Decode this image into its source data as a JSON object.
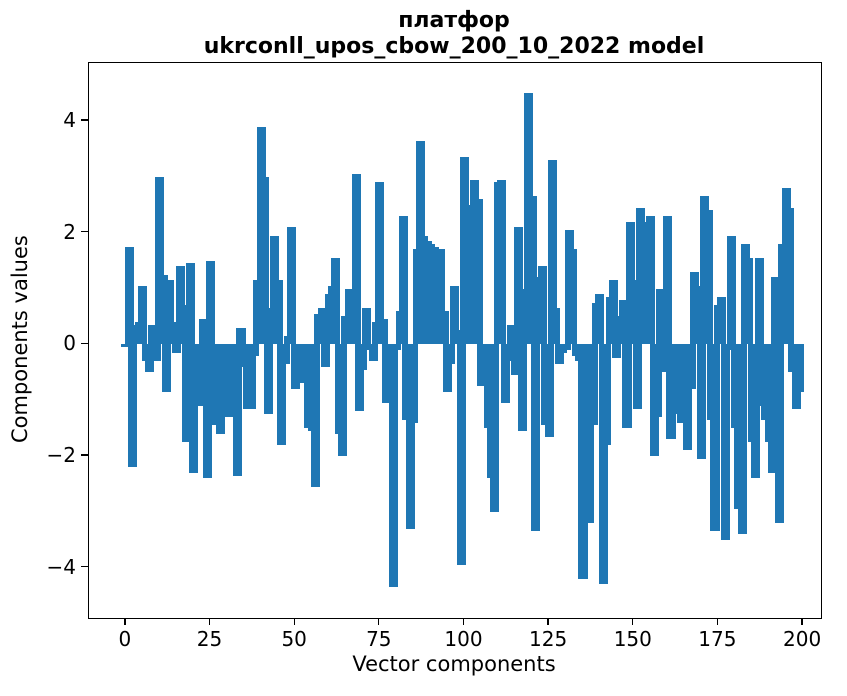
{
  "figure": {
    "title_line1": "платфор",
    "title_line2": "ukrconll_upos_cbow_200_10_2022 model",
    "xlabel": "Vector components",
    "ylabel": "Components values"
  },
  "chart_data": {
    "type": "bar",
    "title": "платфор\nukrconll_upos_cbow_200_10_2022 model",
    "xlabel": "Vector components",
    "ylabel": "Components values",
    "x_start": 0,
    "x_ticks": [
      0,
      25,
      50,
      75,
      100,
      125,
      150,
      175,
      200
    ],
    "y_ticks": [
      4,
      2,
      0,
      -2,
      -4
    ],
    "xlim": [
      -10.9,
      205.3
    ],
    "ylim": [
      -4.9,
      5.04
    ],
    "grid": false,
    "legend": null,
    "bar_color": "#1f77b4",
    "bar_width": 0.8,
    "values": [
      -0.05,
      1.75,
      -2.2,
      0.35,
      0.4,
      1.05,
      -0.3,
      -0.5,
      0.35,
      -0.3,
      3.0,
      1.25,
      -0.85,
      1.15,
      0.4,
      -0.15,
      1.4,
      0.7,
      -1.75,
      1.45,
      -2.3,
      -1.1,
      -1.1,
      0.45,
      -2.4,
      1.5,
      -1.45,
      -0.9,
      -1.6,
      -0.75,
      -1.3,
      -0.65,
      -1.3,
      -2.35,
      0.3,
      -0.4,
      -1.15,
      -1.15,
      -0.2,
      1.15,
      3.9,
      3.0,
      -1.25,
      0.65,
      1.95,
      1.15,
      -1.8,
      -0.35,
      0.15,
      2.1,
      -0.8,
      -0.5,
      -0.7,
      -0.7,
      -1.5,
      -1.55,
      -2.55,
      0.55,
      0.65,
      -0.4,
      0.9,
      1.05,
      1.55,
      -1.6,
      -2.0,
      0.5,
      1.0,
      0.35,
      3.05,
      -1.2,
      -0.45,
      0.65,
      -0.1,
      -0.3,
      0.4,
      2.9,
      0.45,
      -1.05,
      -0.95,
      -4.35,
      -0.1,
      0.6,
      2.3,
      -1.35,
      -3.3,
      -1.4,
      1.7,
      3.65,
      1.95,
      1.85,
      1.8,
      1.75,
      0.5,
      1.7,
      0.6,
      -0.85,
      -0.35,
      1.05,
      0.25,
      -3.95,
      3.35,
      2.5,
      0.75,
      2.95,
      2.6,
      -0.75,
      -0.65,
      -1.5,
      -2.4,
      -3.0,
      2.9,
      2.95,
      -1.05,
      -0.3,
      0.35,
      -0.55,
      2.1,
      -1.55,
      1.0,
      4.5,
      2.65,
      -3.35,
      1.2,
      1.4,
      -1.45,
      -1.65,
      3.3,
      0.65,
      -0.35,
      -0.15,
      -0.1,
      2.05,
      1.7,
      -0.2,
      -0.3,
      -4.2,
      -2.2,
      -3.2,
      -1.45,
      0.75,
      0.9,
      -4.3,
      -1.8,
      0.85,
      1.15,
      -0.25,
      0.5,
      0.8,
      -1.5,
      2.2,
      1.15,
      -1.15,
      2.45,
      2.2,
      2.0,
      2.3,
      -2.0,
      -1.3,
      1.0,
      -0.5,
      2.3,
      -1.7,
      -1.25,
      -0.35,
      -1.4,
      -1.4,
      -1.9,
      -0.8,
      1.3,
      1.05,
      -2.05,
      2.65,
      2.4,
      -1.35,
      -3.35,
      0.7,
      0.85,
      -3.5,
      -0.1,
      1.95,
      -1.5,
      -2.95,
      -3.4,
      1.8,
      1.55,
      -1.75,
      -2.4,
      1.55,
      -1.1,
      -1.35,
      -1.75,
      -2.3,
      1.2,
      -3.2,
      1.8,
      2.8,
      2.45,
      -0.5,
      -1.15,
      -0.85
    ]
  }
}
